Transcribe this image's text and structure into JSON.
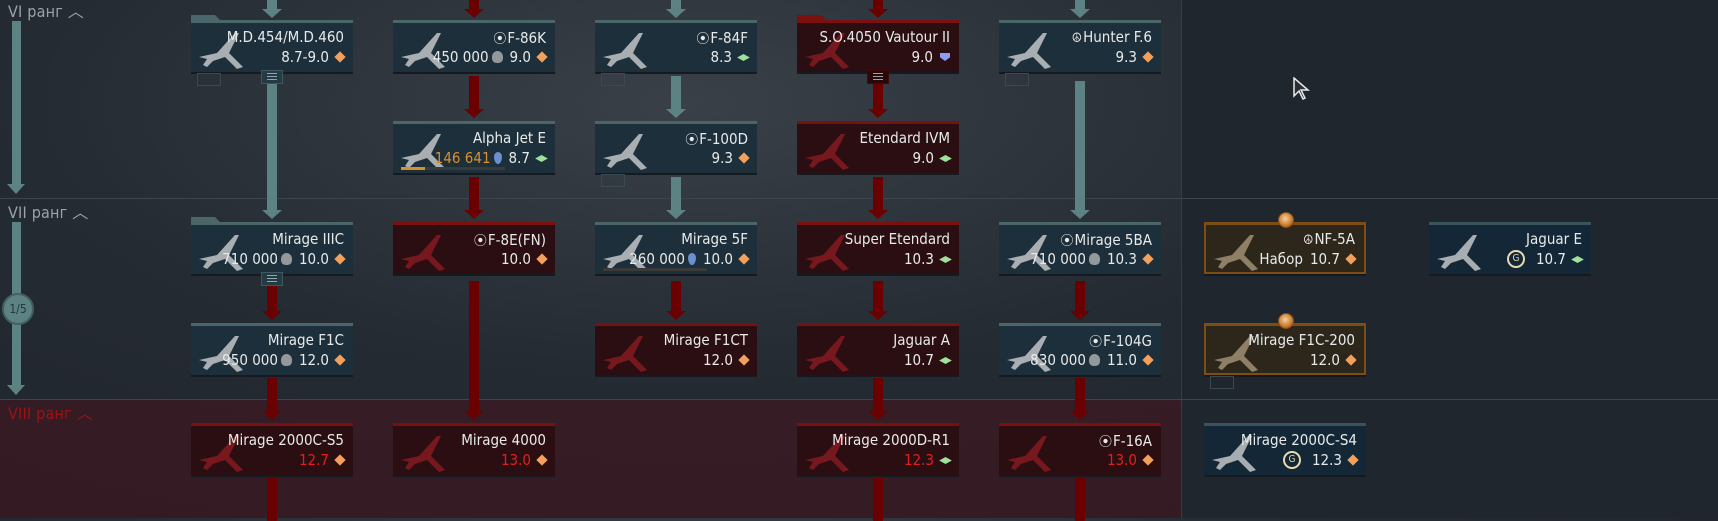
{
  "ranks": [
    {
      "label": "VI ранг",
      "state": "researched"
    },
    {
      "label": "VII ранг",
      "state": "researched",
      "page_indicator": "1/5"
    },
    {
      "label": "VIII ранг",
      "state": "locked"
    }
  ],
  "colors": {
    "researched_link": "#5d8283",
    "locked_link": "#6a0000",
    "br_orange": "#f3a05a",
    "br_green": "#9fe09a",
    "br_locked_red": "#e02020"
  },
  "cards": [
    {
      "name": "M.D.454/M.D.460",
      "br": "8.7-9.0",
      "br_icon": "orange-diamond",
      "state": "researched",
      "group": true
    },
    {
      "name": "F-86K",
      "prefix_icon": "target-circle-icon",
      "cost": "450 000",
      "cost_icon": "research-points-icon",
      "br": "9.0",
      "br_icon": "orange-diamond",
      "state": "researched"
    },
    {
      "name": "F-84F",
      "prefix_icon": "target-circle-icon",
      "br": "8.3",
      "br_icon": "green-rhombus",
      "state": "researched"
    },
    {
      "name": "S.O.4050 Vautour II",
      "br": "9.0",
      "br_icon": "blue-shield",
      "state": "locked",
      "group": true
    },
    {
      "name": "Hunter F.6",
      "prefix_icon": "peace-circle-icon",
      "br": "9.3",
      "br_icon": "orange-diamond",
      "state": "researched"
    },
    {
      "name": "Alpha Jet E",
      "cost": "146 641",
      "cost_icon": "research-drop-icon",
      "br": "8.7",
      "br_icon": "green-rhombus",
      "state": "researched",
      "research_progress": 0.23
    },
    {
      "name": "F-100D",
      "prefix_icon": "target-circle-icon",
      "br": "9.3",
      "br_icon": "orange-diamond",
      "state": "researched"
    },
    {
      "name": "Etendard IVM",
      "br": "9.0",
      "br_icon": "green-rhombus",
      "state": "locked"
    },
    {
      "name": "Mirage IIIC",
      "cost": "710 000",
      "cost_icon": "research-points-icon",
      "br": "10.0",
      "br_icon": "orange-diamond",
      "state": "researched",
      "group": true
    },
    {
      "name": "F-8E(FN)",
      "prefix_icon": "target-circle-icon",
      "br": "10.0",
      "br_icon": "orange-diamond",
      "state": "locked"
    },
    {
      "name": "Mirage 5F",
      "cost": "260 000",
      "cost_icon": "research-drop-icon",
      "br": "10.0",
      "br_icon": "orange-diamond",
      "state": "researched",
      "research_progress": 0
    },
    {
      "name": "Super Etendard",
      "br": "10.3",
      "br_icon": "green-rhombus",
      "state": "locked"
    },
    {
      "name": "Mirage 5BA",
      "prefix_icon": "target-circle-icon",
      "cost": "710 000",
      "cost_icon": "research-points-icon",
      "br": "10.3",
      "br_icon": "orange-diamond",
      "state": "researched"
    },
    {
      "name": "NF-5A",
      "prefix_icon": "peace-circle-icon",
      "cost": "Набор",
      "br": "10.7",
      "br_icon": "orange-diamond",
      "state": "gold"
    },
    {
      "name": "Jaguar E",
      "coin_icon": "G",
      "br": "10.7",
      "br_icon": "green-rhombus",
      "state": "prem"
    },
    {
      "name": "Mirage F1C",
      "cost": "950 000",
      "cost_icon": "research-points-icon",
      "br": "12.0",
      "br_icon": "orange-diamond",
      "state": "researched"
    },
    {
      "name": "Mirage F1CT",
      "br": "12.0",
      "br_icon": "orange-diamond",
      "state": "locked"
    },
    {
      "name": "Jaguar A",
      "br": "10.7",
      "br_icon": "green-rhombus",
      "state": "locked"
    },
    {
      "name": "F-104G",
      "prefix_icon": "target-circle-icon",
      "cost": "830 000",
      "cost_icon": "research-points-icon",
      "br": "11.0",
      "br_icon": "orange-diamond",
      "state": "researched"
    },
    {
      "name": "Mirage F1C-200",
      "br": "12.0",
      "br_icon": "orange-diamond",
      "state": "gold"
    },
    {
      "name": "Mirage 2000C-S5",
      "br": "12.7",
      "br_icon": "orange-diamond",
      "state": "locked",
      "br_red": true
    },
    {
      "name": "Mirage 4000",
      "br": "13.0",
      "br_icon": "orange-diamond",
      "state": "locked",
      "br_red": true
    },
    {
      "name": "Mirage 2000D-R1",
      "br": "12.3",
      "br_icon": "green-rhombus",
      "state": "locked",
      "br_red": true
    },
    {
      "name": "F-16A",
      "prefix_icon": "target-circle-icon",
      "br": "13.0",
      "br_icon": "orange-diamond",
      "state": "locked",
      "br_red": true
    },
    {
      "name": "Mirage 2000C-S4",
      "coin_icon": "G",
      "br": "12.3",
      "br_icon": "orange-diamond",
      "state": "prem"
    }
  ]
}
